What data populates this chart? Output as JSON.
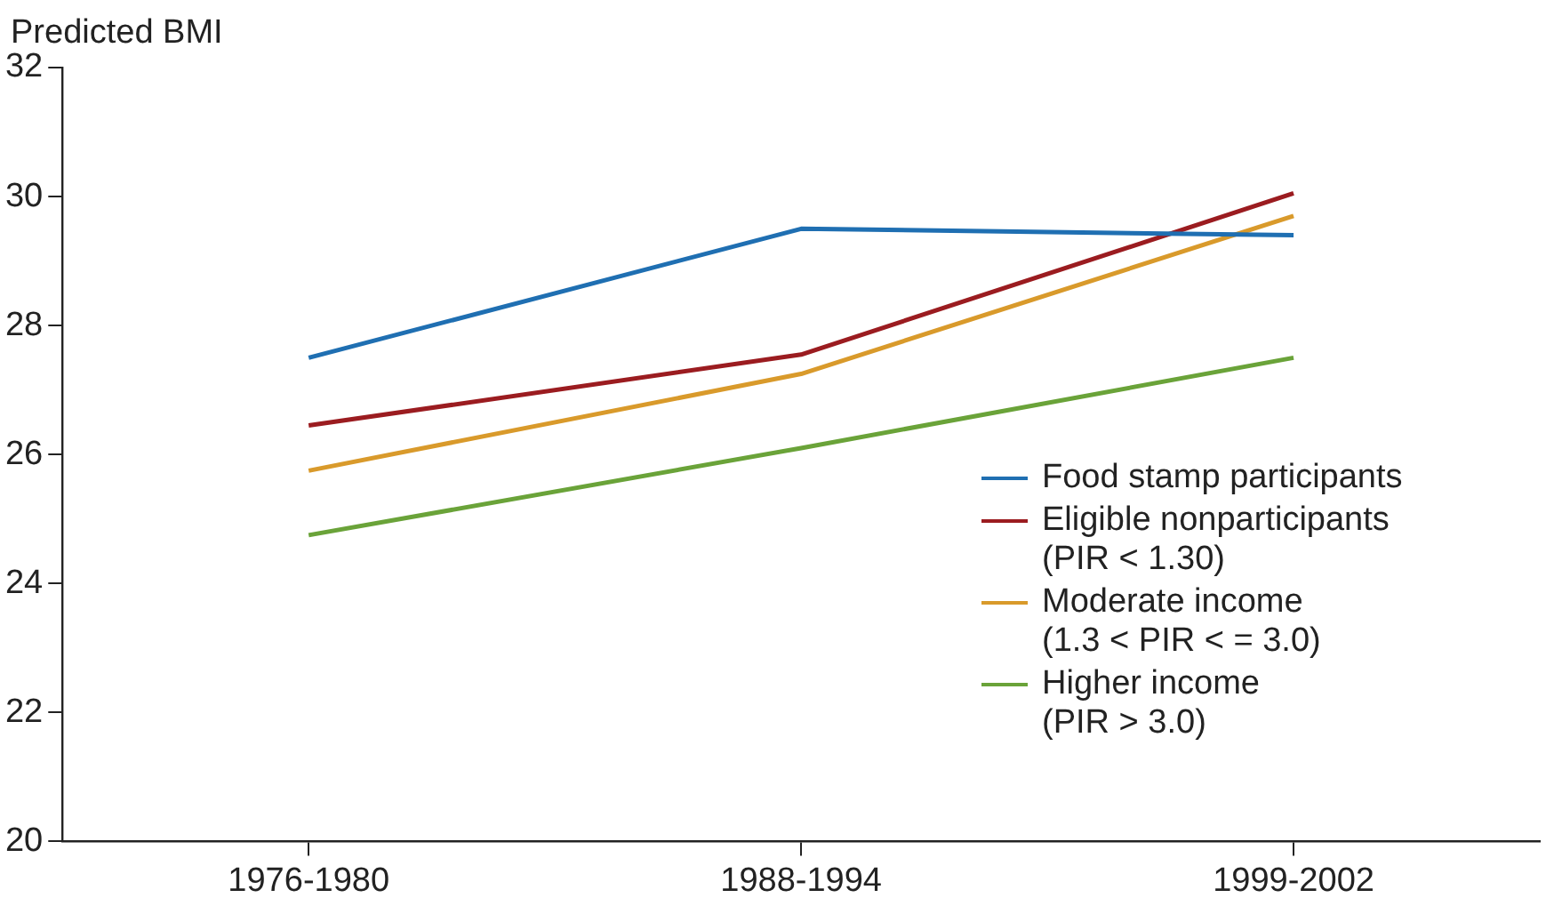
{
  "chart_data": {
    "type": "line",
    "ylabel": "Predicted BMI",
    "categories": [
      "1976-1980",
      "1988-1994",
      "1999-2002"
    ],
    "series": [
      {
        "name": "Food stamp participants",
        "color": "#1f6fb2",
        "values": [
          27.5,
          29.5,
          29.4
        ]
      },
      {
        "name": "Eligible nonparticipants (PIR < 1.30)",
        "color": "#9b1c20",
        "values": [
          26.45,
          27.55,
          30.05
        ]
      },
      {
        "name": "Moderate income (1.3 < PIR < = 3.0)",
        "color": "#d99a2b",
        "values": [
          25.75,
          27.25,
          29.7
        ]
      },
      {
        "name": "Higher income (PIR > 3.0)",
        "color": "#6aa339",
        "values": [
          24.75,
          26.1,
          27.5
        ]
      }
    ],
    "ylim": [
      20,
      32
    ],
    "yticks": [
      20,
      22,
      24,
      26,
      28,
      30,
      32
    ],
    "grid": false,
    "legend": "bottom right",
    "marker": "none",
    "line_style": "solid"
  }
}
